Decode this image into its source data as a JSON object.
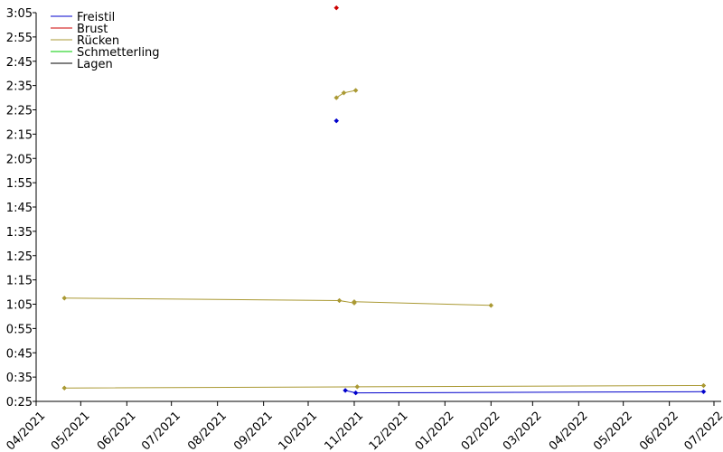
{
  "chart_data": {
    "type": "line",
    "title": "",
    "xlabel": "",
    "ylabel": "",
    "legend_position": "top-left",
    "grid": false,
    "x_range": [
      "2021-04-01",
      "2022-07-01"
    ],
    "y_range": [
      "0:25",
      "3:05"
    ],
    "x_ticks": [
      {
        "date": "2021-04-01",
        "label": "04/2021"
      },
      {
        "date": "2021-05-01",
        "label": "05/2021"
      },
      {
        "date": "2021-06-01",
        "label": "06/2021"
      },
      {
        "date": "2021-07-01",
        "label": "07/2021"
      },
      {
        "date": "2021-08-01",
        "label": "08/2021"
      },
      {
        "date": "2021-09-01",
        "label": "09/2021"
      },
      {
        "date": "2021-10-01",
        "label": "10/2021"
      },
      {
        "date": "2021-11-01",
        "label": "11/2021"
      },
      {
        "date": "2021-12-01",
        "label": "12/2021"
      },
      {
        "date": "2022-01-01",
        "label": "01/2022"
      },
      {
        "date": "2022-02-01",
        "label": "02/2022"
      },
      {
        "date": "2022-03-01",
        "label": "03/2022"
      },
      {
        "date": "2022-04-01",
        "label": "04/2022"
      },
      {
        "date": "2022-05-01",
        "label": "05/2022"
      },
      {
        "date": "2022-06-01",
        "label": "06/2022"
      },
      {
        "date": "2022-07-01",
        "label": "07/2022"
      }
    ],
    "y_ticks": [
      "0:25",
      "0:35",
      "0:45",
      "0:55",
      "1:05",
      "1:15",
      "1:25",
      "1:35",
      "1:45",
      "1:55",
      "2:05",
      "2:15",
      "2:25",
      "2:35",
      "2:45",
      "2:55",
      "3:05"
    ],
    "series": [
      {
        "name": "Freistil",
        "color": "#0000cc",
        "segments": [
          [
            {
              "x": "2021-10-20",
              "y": "2:20.5"
            }
          ],
          [
            {
              "x": "2021-10-26",
              "y": "0:29.5"
            },
            {
              "x": "2021-11-02",
              "y": "0:28.5"
            },
            {
              "x": "2022-06-24",
              "y": "0:29.0"
            }
          ]
        ]
      },
      {
        "name": "Brust",
        "color": "#cc0000",
        "segments": [
          [
            {
              "x": "2021-10-20",
              "y": "3:07.0"
            }
          ]
        ]
      },
      {
        "name": "Rücken",
        "color": "#aa9933",
        "segments": [
          [
            {
              "x": "2021-04-20",
              "y": "1:07.5"
            },
            {
              "x": "2021-10-22",
              "y": "1:06.5"
            },
            {
              "x": "2021-11-01",
              "y": "1:05.5"
            },
            {
              "x": "2021-11-01",
              "y": "1:06.0"
            },
            {
              "x": "2022-02-01",
              "y": "1:04.5"
            }
          ],
          [
            {
              "x": "2021-04-20",
              "y": "0:30.5"
            },
            {
              "x": "2021-11-03",
              "y": "0:31.0"
            },
            {
              "x": "2022-06-24",
              "y": "0:31.5"
            }
          ],
          [
            {
              "x": "2021-10-20",
              "y": "2:30.0"
            },
            {
              "x": "2021-10-25",
              "y": "2:32.0"
            },
            {
              "x": "2021-11-02",
              "y": "2:33.0"
            }
          ]
        ]
      },
      {
        "name": "Schmetterling",
        "color": "#00cc00",
        "segments": []
      },
      {
        "name": "Lagen",
        "color": "#000000",
        "segments": []
      }
    ]
  }
}
